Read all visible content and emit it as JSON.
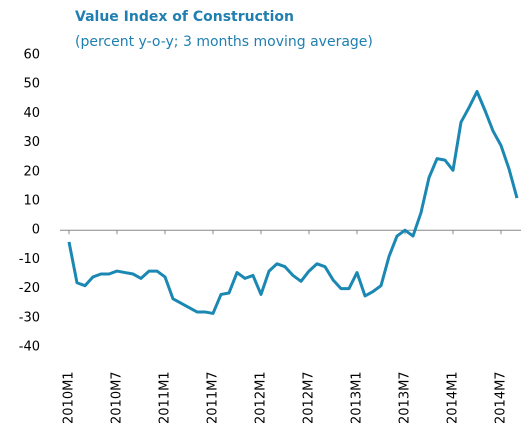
{
  "chart_data": {
    "type": "line",
    "title": "Value Index of Construction",
    "subtitle": "(percent y-o-y; 3 months moving average)",
    "categories": [
      "2010M1",
      null,
      null,
      null,
      null,
      null,
      "2010M7",
      null,
      null,
      null,
      null,
      null,
      "2011M1",
      null,
      null,
      null,
      null,
      null,
      "2011M7",
      null,
      null,
      null,
      null,
      null,
      "2012M1",
      null,
      null,
      null,
      null,
      null,
      "2012M7",
      null,
      null,
      null,
      null,
      null,
      "2013M1",
      null,
      null,
      null,
      null,
      null,
      "2013M7",
      null,
      null,
      null,
      null,
      null,
      "2014M1",
      null,
      null,
      null,
      null,
      null,
      "2014M7",
      null,
      null
    ],
    "series": [
      {
        "name": "Value Index of Construction",
        "color": "#1b88b3",
        "values": [
          -4,
          -18,
          -19,
          -16,
          -15,
          -15,
          -14,
          -14.5,
          -15,
          -16.5,
          -14,
          -14,
          -16,
          -23.5,
          -25,
          -26.5,
          -28,
          -28,
          -28.5,
          -22,
          -21.5,
          -14.5,
          -16.5,
          -15.5,
          -22,
          -14,
          -11.5,
          -12.5,
          -15.5,
          -17.5,
          -14,
          -11.5,
          -12.5,
          -17,
          -20,
          -20,
          -14.5,
          -22.5,
          -21,
          -19,
          -9,
          -2,
          0,
          -2,
          6,
          18,
          24.5,
          24,
          20.5,
          37,
          42,
          47.5,
          41,
          34,
          29,
          21,
          11
        ]
      }
    ],
    "ylim": [
      -40,
      60
    ],
    "yticks": [
      -40,
      -30,
      -20,
      -10,
      0,
      10,
      20,
      30,
      40,
      50,
      60
    ],
    "grid": false
  }
}
